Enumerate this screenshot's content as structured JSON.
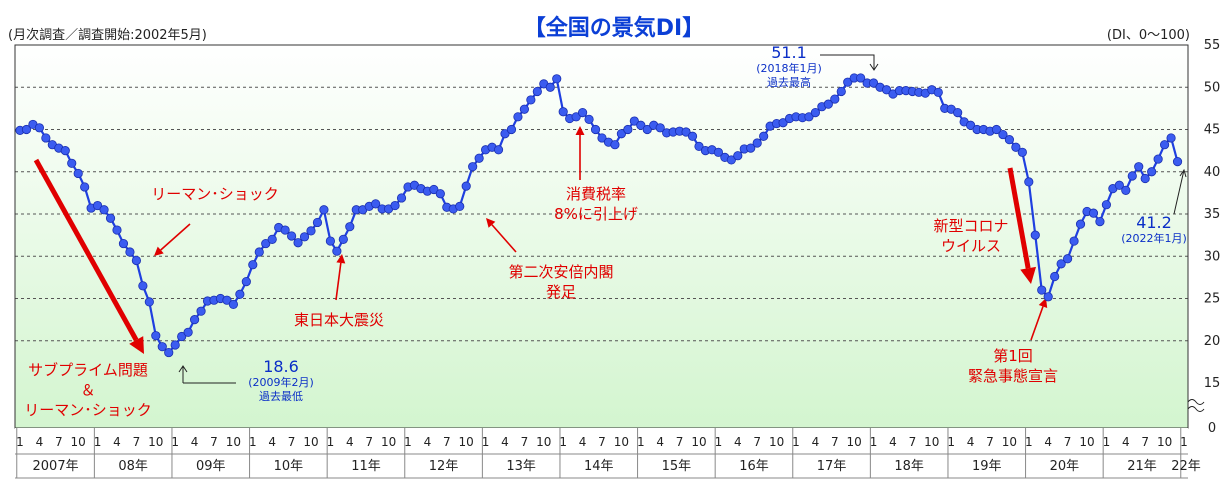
{
  "header": {
    "title": "【全国の景気DI】",
    "left_note": "(月次調査／調査開始:2002年5月)",
    "right_note": "(DI、0～100)"
  },
  "chart_data": {
    "type": "line",
    "title": "【全国の景気DI】",
    "ylabel": "(DI、0～100)",
    "ylim": [
      0,
      55
    ],
    "yticks": [
      0,
      15,
      20,
      25,
      30,
      35,
      40,
      45,
      50,
      55
    ],
    "grid": true,
    "axis_break_below": 15,
    "x_start": "2007-01",
    "x_end": "2022-01",
    "month_ticks": [
      "1",
      "4",
      "7",
      "10"
    ],
    "years": [
      "2007年",
      "08年",
      "09年",
      "10年",
      "11年",
      "12年",
      "13年",
      "14年",
      "15年",
      "16年",
      "17年",
      "18年",
      "19年",
      "20年",
      "21年",
      "22年"
    ],
    "series": [
      {
        "color": "#1f3fe0",
        "values": [
          44.9,
          45.0,
          45.6,
          45.2,
          44.0,
          43.2,
          42.8,
          42.5,
          41.0,
          39.8,
          38.2,
          35.7,
          36.0,
          35.5,
          34.5,
          33.1,
          31.5,
          30.5,
          29.5,
          26.5,
          24.6,
          20.6,
          19.3,
          18.6,
          19.5,
          20.5,
          21.0,
          22.5,
          23.5,
          24.7,
          24.8,
          25.0,
          24.8,
          24.3,
          25.5,
          27.0,
          29.0,
          30.5,
          31.5,
          32.0,
          33.4,
          33.1,
          32.4,
          31.6,
          32.3,
          33.0,
          34.0,
          35.5,
          31.8,
          30.6,
          32.0,
          33.5,
          35.5,
          35.5,
          35.9,
          36.2,
          35.6,
          35.6,
          36.0,
          36.9,
          38.2,
          38.4,
          38.0,
          37.7,
          37.9,
          37.4,
          35.8,
          35.6,
          35.9,
          38.3,
          40.6,
          41.6,
          42.6,
          42.9,
          42.6,
          44.5,
          45.0,
          46.5,
          47.4,
          48.5,
          49.5,
          50.4,
          50.0,
          51.0,
          47.1,
          46.3,
          46.5,
          47.0,
          46.2,
          45.0,
          44.0,
          43.5,
          43.2,
          44.5,
          45.0,
          46.0,
          45.5,
          45.0,
          45.5,
          45.2,
          44.6,
          44.7,
          44.8,
          44.7,
          44.2,
          43.0,
          42.5,
          42.6,
          42.3,
          41.7,
          41.4,
          41.9,
          42.7,
          42.8,
          43.4,
          44.2,
          45.4,
          45.7,
          45.8,
          46.3,
          46.5,
          46.4,
          46.5,
          47.0,
          47.7,
          48.0,
          48.6,
          49.5,
          50.6,
          51.1,
          51.1,
          50.5,
          50.5,
          50.0,
          49.7,
          49.2,
          49.6,
          49.6,
          49.5,
          49.4,
          49.3,
          49.7,
          49.4,
          47.5,
          47.4,
          47.0,
          45.9,
          45.5,
          45.0,
          45.0,
          44.8,
          45.0,
          44.4,
          43.8,
          42.9,
          42.3,
          38.8,
          32.5,
          26.0,
          25.2,
          27.6,
          29.1,
          29.7,
          31.8,
          33.8,
          35.3,
          35.1,
          34.1,
          36.1,
          38.0,
          38.4,
          37.8,
          39.5,
          40.6,
          39.2,
          40.0,
          41.5,
          43.2,
          44.0,
          41.2
        ]
      }
    ],
    "annotations": [
      {
        "label": "サブプライム問題\n＆\nリーマン･ショック"
      },
      {
        "label": "リーマン･ショック"
      },
      {
        "label": "東日本大震災"
      },
      {
        "label": "第二次安倍内閣\n発足"
      },
      {
        "label": "消費税率\n8%に引上げ"
      },
      {
        "label": "新型コロナ\nウイルス"
      },
      {
        "label": "第1回\n緊急事態宣言"
      },
      {
        "value_label": "18.6",
        "sub": "(2009年2月)",
        "note": "過去最低"
      },
      {
        "value_label": "51.1",
        "sub": "(2018年1月)",
        "note": "過去最高"
      },
      {
        "value_label": "41.2",
        "sub": "(2022年1月)"
      }
    ]
  }
}
